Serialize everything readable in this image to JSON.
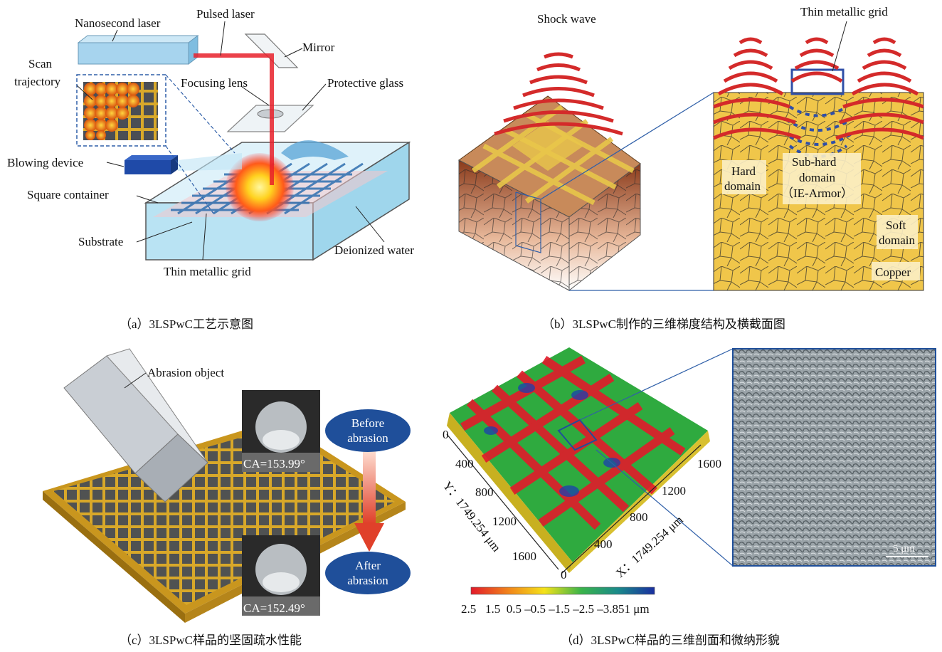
{
  "panel_a": {
    "caption": "（a）3LSPwC工艺示意图",
    "labels": {
      "nanosecond_laser": "Nanosecond laser",
      "pulsed_laser": "Pulsed laser",
      "mirror": "Mirror",
      "scan_trajectory_1": "Scan",
      "scan_trajectory_2": "trajectory",
      "focusing_lens": "Focusing lens",
      "protective_glass": "Protective glass",
      "blowing_device": "Blowing device",
      "square_container": "Square container",
      "substrate": "Substrate",
      "deionized_water": "Deionized water",
      "thin_metallic_grid": "Thin metallic grid"
    }
  },
  "panel_b": {
    "caption": "（b）3LSPwC制作的三维梯度结构及横截面图",
    "labels": {
      "shock_wave": "Shock wave",
      "thin_metallic_grid": "Thin metallic grid",
      "hard_domain_1": "Hard",
      "hard_domain_2": "domain",
      "sub_hard_1": "Sub-hard",
      "sub_hard_2": "domain",
      "sub_hard_3": "（IE-Armor）",
      "soft_domain_1": "Soft",
      "soft_domain_2": "domain",
      "copper": "Copper"
    }
  },
  "panel_c": {
    "caption": "（c）3LSPwC样品的坚固疏水性能",
    "labels": {
      "abrasion_object": "Abrasion object",
      "ca_before": "CA=153.99°",
      "ca_after": "CA=152.49°",
      "before_1": "Before",
      "before_2": "abrasion",
      "after_1": "After",
      "after_2": "abrasion"
    }
  },
  "panel_d": {
    "caption": "（d）3LSPwC样品的三维剖面和微纳形貌",
    "y_ticks": [
      "0",
      "400",
      "800",
      "1200",
      "1600"
    ],
    "x_ticks": [
      "0",
      "400",
      "800",
      "1200",
      "1600"
    ],
    "y_axis_label": "Y：1749.254 μm",
    "x_axis_label": "X：1749.254 μm",
    "colorbar_labels": "2.5   1.5  0.5 –0.5 –1.5 –2.5 –3.851 μm",
    "scale_bar": "5 μm"
  },
  "colors": {
    "laser_red": "#e8202a",
    "container_blue": "#9fd6ec",
    "grid_gold": "#e8b832",
    "grid_blue": "#2f6fb0",
    "ellipse_blue": "#1f4f9a"
  }
}
